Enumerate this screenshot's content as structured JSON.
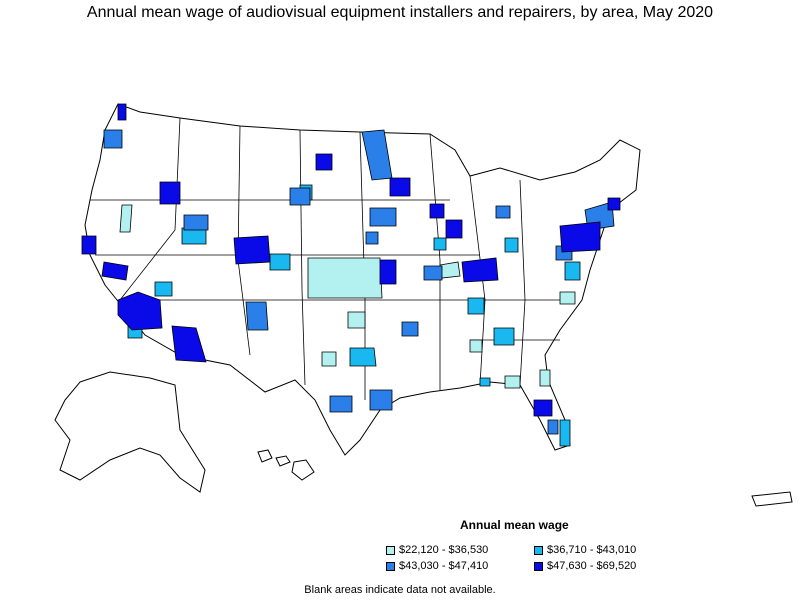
{
  "title": "Annual mean wage of audiovisual equipment installers and repairers, by area, May 2020",
  "legend": {
    "title": "Annual mean wage",
    "items": [
      {
        "label": "$22,120 - $36,530",
        "color": "#b3f0f0"
      },
      {
        "label": "$36,710 - $43,010",
        "color": "#1ab8f0"
      },
      {
        "label": "$43,030 - $47,410",
        "color": "#2a7fe8"
      },
      {
        "label": "$47,630 - $69,520",
        "color": "#0a0ae8"
      }
    ]
  },
  "note": "Blank areas indicate data not available.",
  "colors": {
    "outline": "#000000",
    "blank": "#ffffff"
  }
}
